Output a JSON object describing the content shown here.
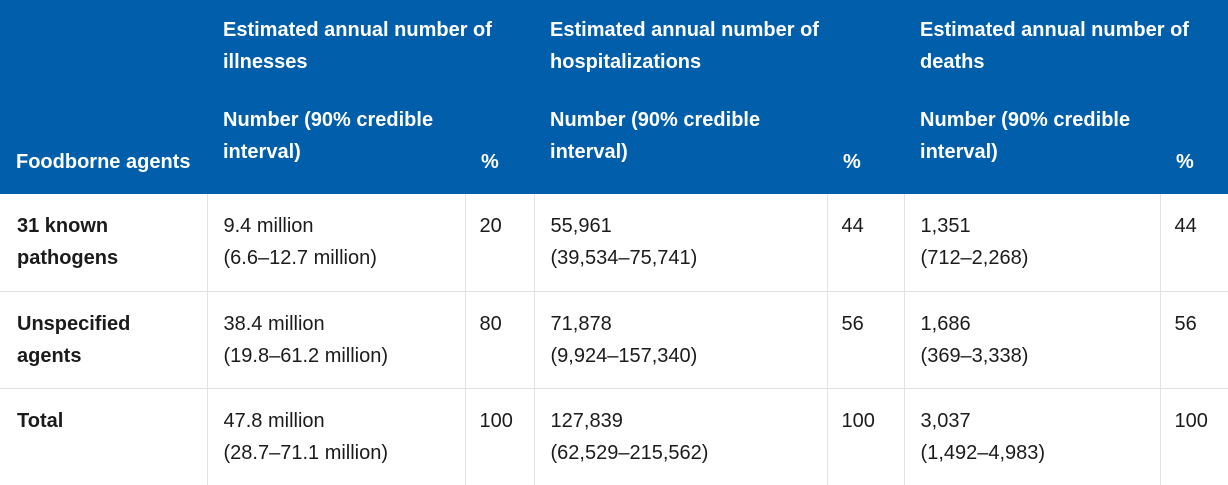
{
  "chart_data": {
    "type": "table",
    "columns": {
      "agent_header": "Foodborne agents",
      "groups": [
        {
          "title": "Estimated annual number of illnesses",
          "number_label": "Number (90% credible interval)",
          "pct_label": "%"
        },
        {
          "title": "Estimated annual number of hospitalizations",
          "number_label": "Number (90% credible interval)",
          "pct_label": "%"
        },
        {
          "title": "Estimated annual number of deaths",
          "number_label": "Number (90% credible interval)",
          "pct_label": "%"
        }
      ]
    },
    "rows": [
      {
        "agent": "31 known pathogens",
        "illnesses": {
          "value": "9.4 million",
          "interval": "(6.6–12.7 million)",
          "pct": "20"
        },
        "hospitalizations": {
          "value": "55,961",
          "interval": "(39,534–75,741)",
          "pct": "44"
        },
        "deaths": {
          "value": "1,351",
          "interval": "(712–2,268)",
          "pct": "44"
        }
      },
      {
        "agent": "Unspecified agents",
        "illnesses": {
          "value": "38.4 million",
          "interval": "(19.8–61.2 million)",
          "pct": "80"
        },
        "hospitalizations": {
          "value": "71,878",
          "interval": "(9,924–157,340)",
          "pct": "56"
        },
        "deaths": {
          "value": "1,686",
          "interval": "(369–3,338)",
          "pct": "56"
        }
      },
      {
        "agent": "Total",
        "illnesses": {
          "value": "47.8 million",
          "interval": "(28.7–71.1 million)",
          "pct": "100"
        },
        "hospitalizations": {
          "value": "127,839",
          "interval": "(62,529–215,562)",
          "pct": "100"
        },
        "deaths": {
          "value": "3,037",
          "interval": "(1,492–4,983)",
          "pct": "100"
        }
      }
    ]
  },
  "colors": {
    "header_bg": "#005eaa",
    "header_text": "#ffffff",
    "body_text": "#1b1b1b",
    "grid": "#dfe1e2"
  }
}
